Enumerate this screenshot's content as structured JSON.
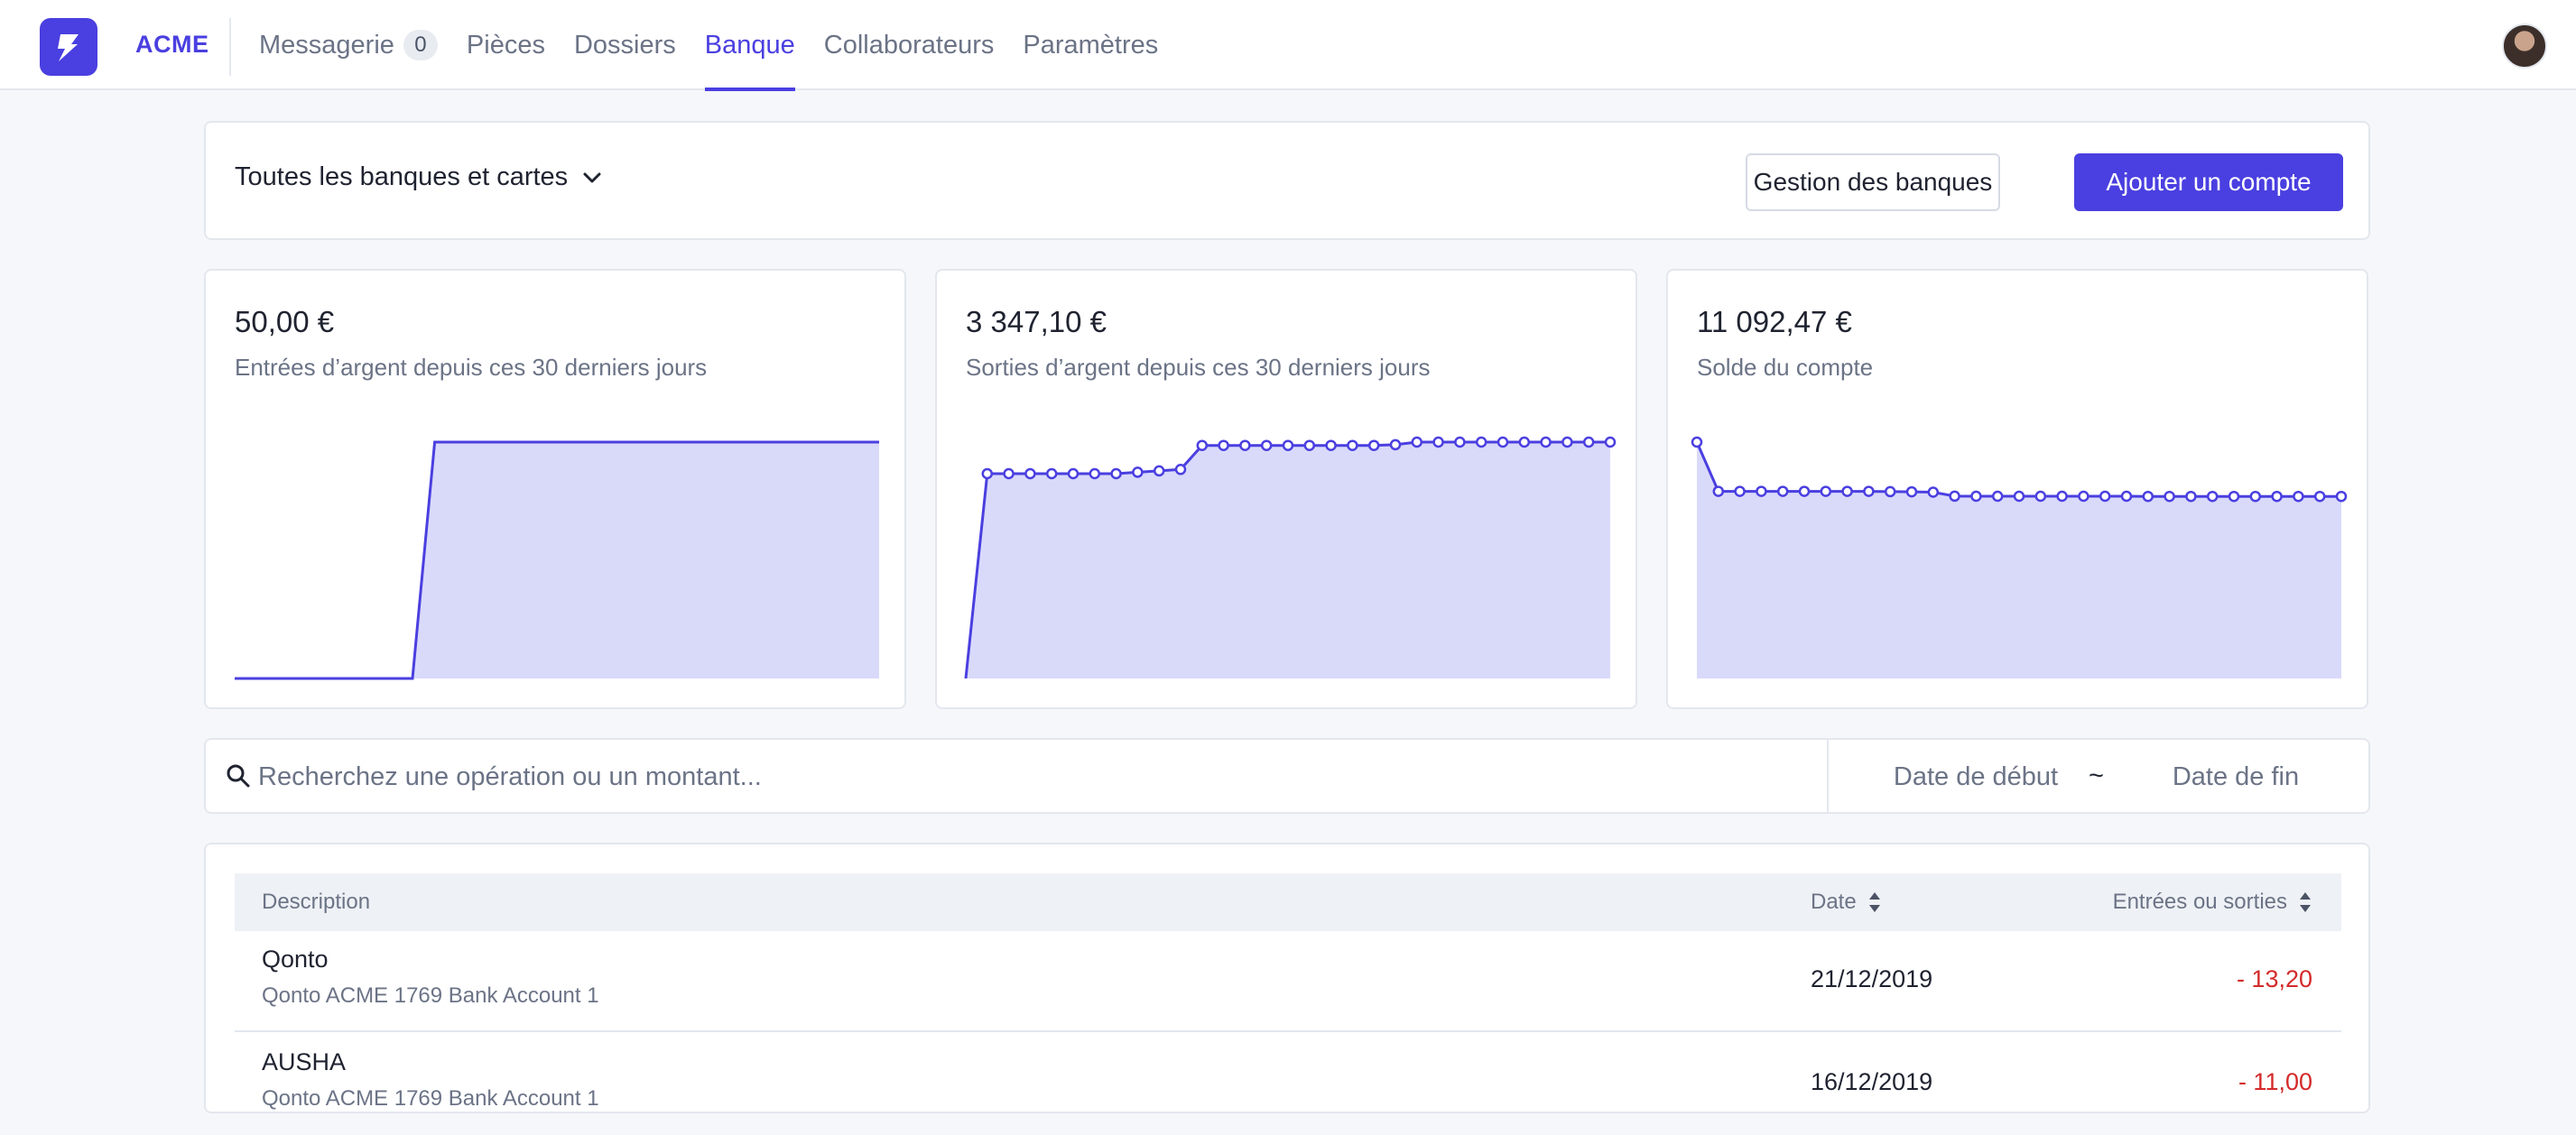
{
  "brand": {
    "name": "ACME",
    "color": "#4a3fe0"
  },
  "nav": {
    "items": [
      {
        "label": "Messagerie",
        "badge": "0"
      },
      {
        "label": "Pièces"
      },
      {
        "label": "Dossiers"
      },
      {
        "label": "Banque",
        "active": true
      },
      {
        "label": "Collaborateurs"
      },
      {
        "label": "Paramètres"
      }
    ]
  },
  "filter": {
    "bank_select": "Toutes les banques et cartes",
    "manage_button": "Gestion des banques",
    "add_button": "Ajouter un compte"
  },
  "stats": [
    {
      "value": "50,00 €",
      "label": "Entrées d’argent depuis ces 30 derniers jours"
    },
    {
      "value": "3 347,10 €",
      "label": "Sorties d’argent depuis ces 30 derniers jours"
    },
    {
      "value": "11 092,47 €",
      "label": "Solde du compte"
    }
  ],
  "sparklines": {
    "line_color": "#4a3fe0",
    "fill_color": "#d9dafa",
    "inflows": {
      "values": [
        0,
        0,
        0,
        0,
        0,
        0,
        0,
        0,
        0,
        50,
        50,
        50,
        50,
        50,
        50,
        50,
        50,
        50,
        50,
        50,
        50,
        50,
        50,
        50,
        50,
        50,
        50,
        50,
        50,
        50
      ]
    },
    "outflows": {
      "values": [
        0,
        2900,
        2900,
        2900,
        2900,
        2900,
        2900,
        2900,
        2920,
        2940,
        2960,
        3300,
        3300,
        3300,
        3300,
        3300,
        3300,
        3300,
        3300,
        3300,
        3310,
        3347.1,
        3347.1,
        3347.1,
        3347.1,
        3347.1,
        3347.1,
        3347.1,
        3347.1,
        3347.1,
        3347.1
      ]
    },
    "balance": {
      "values": [
        14400,
        11400,
        11400,
        11400,
        11400,
        11400,
        11400,
        11400,
        11400,
        11380,
        11370,
        11350,
        11110,
        11100,
        11100,
        11100,
        11100,
        11100,
        11100,
        11100,
        11100,
        11092.47,
        11092.47,
        11092.47,
        11092.47,
        11092.47,
        11092.47,
        11092.47,
        11092.47,
        11092.47,
        11092.47
      ]
    }
  },
  "search": {
    "placeholder": "Recherchez une opération ou un montant...",
    "date_start_placeholder": "Date de début",
    "date_end_placeholder": "Date de fin",
    "separator": "~"
  },
  "table": {
    "headers": {
      "description": "Description",
      "date": "Date",
      "amount": "Entrées ou sorties"
    },
    "rows": [
      {
        "title": "Qonto",
        "subtitle": "Qonto ACME 1769 Bank Account 1",
        "date": "21/12/2019",
        "amount": "- 13,20"
      },
      {
        "title": "AUSHA",
        "subtitle": "Qonto ACME 1769 Bank Account 1",
        "date": "16/12/2019",
        "amount": "- 11,00"
      }
    ]
  }
}
